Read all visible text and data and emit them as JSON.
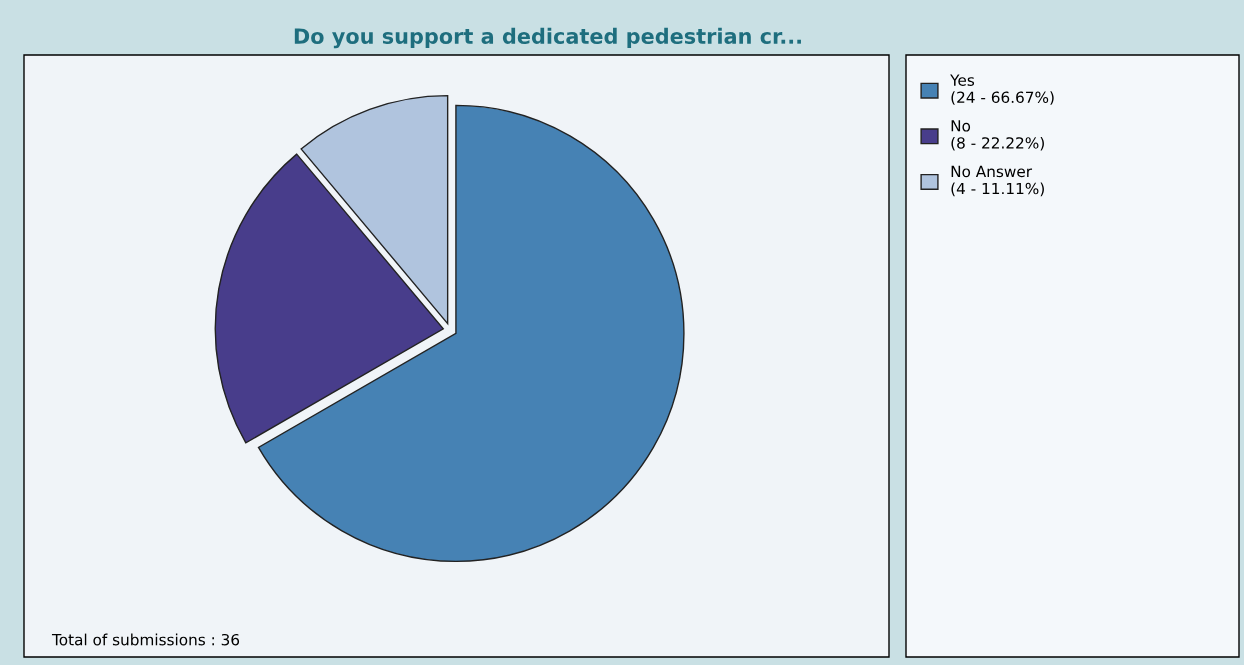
{
  "chart_data": {
    "type": "pie",
    "title": "Do you support a dedicated pedestrian cr...",
    "categories": [
      "Yes",
      "No",
      "No Answer"
    ],
    "values": [
      24,
      8,
      4
    ],
    "colors": [
      "#4682b4",
      "#483d8b",
      "#b0c4de"
    ],
    "value_labels": [
      "(24 - 66.67%)",
      "(8 - 22.22%)",
      "(4 - 11.11%)"
    ],
    "annotations": [
      "Total of submissions : 36"
    ],
    "legend": "right"
  }
}
